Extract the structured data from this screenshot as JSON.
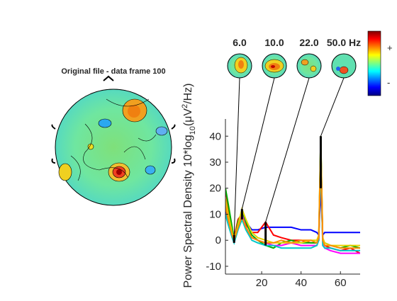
{
  "chart_data": {
    "type": "line",
    "topo_title": "Original file - data frame 100",
    "colorbar_labels": [
      "+",
      "-"
    ],
    "markers": [
      {
        "value": 6,
        "label": "6.0"
      },
      {
        "value": 10,
        "label": "10.0"
      },
      {
        "value": 22,
        "label": "22.0"
      },
      {
        "value": 50,
        "label": "50.0 Hz"
      }
    ],
    "ylabel_parts": [
      "Power Spectral Density 10*log",
      "10",
      "(μV",
      "2",
      "/Hz)"
    ],
    "x": [
      1.6,
      3,
      5,
      6,
      8,
      10,
      12,
      15,
      18,
      22,
      26,
      30,
      35,
      40,
      45,
      48,
      49,
      50,
      51,
      52,
      55,
      60,
      65,
      70
    ],
    "series": [
      {
        "color": "#0000ff",
        "values": [
          12,
          8,
          3,
          2,
          6,
          9,
          7,
          4,
          4,
          5,
          5,
          5,
          5,
          4,
          4,
          3,
          2,
          20,
          2,
          3,
          3,
          3,
          3,
          3
        ]
      },
      {
        "color": "#ff0000",
        "values": [
          20,
          12,
          4,
          1,
          8,
          10,
          6,
          3,
          3,
          7,
          2,
          1,
          0,
          0,
          -1,
          -1,
          0,
          38,
          0,
          -2,
          -3,
          -4,
          -3,
          -5
        ]
      },
      {
        "color": "#00b000",
        "values": [
          20,
          14,
          5,
          0,
          7,
          11,
          7,
          2,
          0,
          -2,
          -3,
          -1,
          0,
          -1,
          -1,
          -1,
          1,
          40,
          0,
          -1,
          -2,
          -3,
          -2,
          -3
        ]
      },
      {
        "color": "#ff00ff",
        "values": [
          14,
          9,
          2,
          -1,
          5,
          10,
          5,
          1,
          0,
          -1,
          -2,
          -2,
          -1,
          -2,
          -2,
          -2,
          0,
          36,
          -1,
          -3,
          -4,
          -5,
          -5,
          -5
        ]
      },
      {
        "color": "#00c8c8",
        "values": [
          10,
          6,
          1,
          -1,
          4,
          8,
          4,
          0,
          -1,
          -2,
          -2,
          -3,
          -3,
          -3,
          -3,
          -2,
          0,
          30,
          -2,
          -3,
          -3,
          -4,
          -4,
          -4
        ]
      },
      {
        "color": "#e6d200",
        "values": [
          16,
          10,
          3,
          0,
          6,
          12,
          8,
          3,
          1,
          0,
          -1,
          -1,
          -1,
          -1,
          0,
          0,
          2,
          40,
          1,
          -1,
          -2,
          -2,
          -2,
          -2
        ]
      },
      {
        "color": "#ff8c00",
        "values": [
          13,
          8,
          2,
          0,
          5,
          9,
          5,
          1,
          0,
          -1,
          -1,
          0,
          -1,
          0,
          0,
          -1,
          1,
          35,
          0,
          -2,
          -2,
          -3,
          -3,
          -3
        ]
      }
    ],
    "xlim": [
      1.6,
      70
    ],
    "ylim": [
      -13,
      46.6
    ],
    "xticks": [
      20,
      40,
      60
    ],
    "yticks": [
      -10,
      0,
      10,
      20,
      30,
      40
    ]
  }
}
